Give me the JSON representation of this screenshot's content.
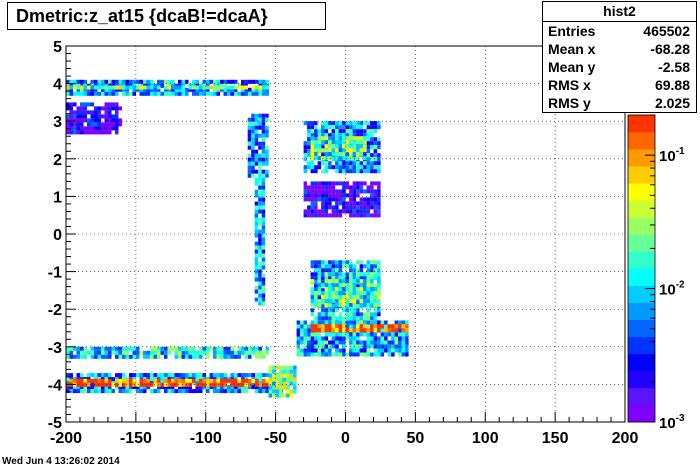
{
  "title": "Dmetric:z_at15 {dcaB!=dcaA}",
  "stats": {
    "name": "hist2",
    "rows": [
      {
        "label": "Entries",
        "value": "465502"
      },
      {
        "label": "Mean x",
        "value": "-68.28"
      },
      {
        "label": "Mean y",
        "value": "-2.58"
      },
      {
        "label": "RMS x",
        "value": "69.88"
      },
      {
        "label": "RMS y",
        "value": "2.025"
      }
    ]
  },
  "footer": "Wed Jun  4 13:26:02 2014",
  "chart_data": {
    "type": "heatmap",
    "title": "Dmetric:z_at15 {dcaB!=dcaA}",
    "xlim": [
      -200,
      200
    ],
    "ylim": [
      -5,
      5
    ],
    "x_ticks": [
      "-200",
      "-150",
      "-100",
      "-50",
      "0",
      "50",
      "100",
      "150",
      "200"
    ],
    "y_ticks": [
      "5",
      "4",
      "3",
      "2",
      "1",
      "0",
      "-1",
      "-2",
      "-3",
      "-4",
      "-5"
    ],
    "z_scale": "log",
    "colorbar_ticks": [
      {
        "base": "10",
        "exp": "-1",
        "value": 0.1
      },
      {
        "base": "10",
        "exp": "-2",
        "value": 0.01
      },
      {
        "base": "10",
        "exp": "-3",
        "value": 0.001
      }
    ],
    "palette": [
      "#7f00ff",
      "#5a14ff",
      "#2200ff",
      "#0000ff",
      "#0033ff",
      "#0066ff",
      "#0099ff",
      "#00ccff",
      "#00ffff",
      "#33ffcc",
      "#66ff99",
      "#99ff66",
      "#ccff33",
      "#ffff00",
      "#ffcc00",
      "#ff9900",
      "#ff6600",
      "#ff3300"
    ],
    "regions": [
      {
        "x": [
          -200,
          -55
        ],
        "y": [
          3.7,
          4.1
        ],
        "level": 0.35
      },
      {
        "x": [
          -200,
          -55
        ],
        "y": [
          3.85,
          3.95
        ],
        "level": 0.6
      },
      {
        "x": [
          -200,
          -160
        ],
        "y": [
          2.7,
          3.5
        ],
        "level": 0.1
      },
      {
        "x": [
          -70,
          -55
        ],
        "y": [
          1.5,
          3.2
        ],
        "level": 0.35
      },
      {
        "x": [
          -65,
          -58
        ],
        "y": [
          -1.8,
          1.5
        ],
        "level": 0.4
      },
      {
        "x": [
          -30,
          25
        ],
        "y": [
          1.7,
          3.0
        ],
        "level": 0.35
      },
      {
        "x": [
          -25,
          15
        ],
        "y": [
          2.0,
          2.6
        ],
        "level": 0.55
      },
      {
        "x": [
          -30,
          25
        ],
        "y": [
          0.5,
          1.4
        ],
        "level": 0.1
      },
      {
        "x": [
          -25,
          25
        ],
        "y": [
          -2.4,
          -0.7
        ],
        "level": 0.4
      },
      {
        "x": [
          -25,
          25
        ],
        "y": [
          -1.9,
          -1.2
        ],
        "level": 0.55
      },
      {
        "x": [
          -35,
          45
        ],
        "y": [
          -3.2,
          -2.3
        ],
        "level": 0.4
      },
      {
        "x": [
          -25,
          45
        ],
        "y": [
          -2.6,
          -2.4
        ],
        "level": 0.95
      },
      {
        "x": [
          -200,
          -55
        ],
        "y": [
          -3.3,
          -3.0
        ],
        "level": 0.45
      },
      {
        "x": [
          -200,
          -40
        ],
        "y": [
          -4.2,
          -3.7
        ],
        "level": 0.35
      },
      {
        "x": [
          -200,
          -40
        ],
        "y": [
          -4.0,
          -3.85
        ],
        "level": 0.95
      },
      {
        "x": [
          -55,
          -35
        ],
        "y": [
          -4.3,
          -3.5
        ],
        "level": 0.6
      }
    ]
  }
}
